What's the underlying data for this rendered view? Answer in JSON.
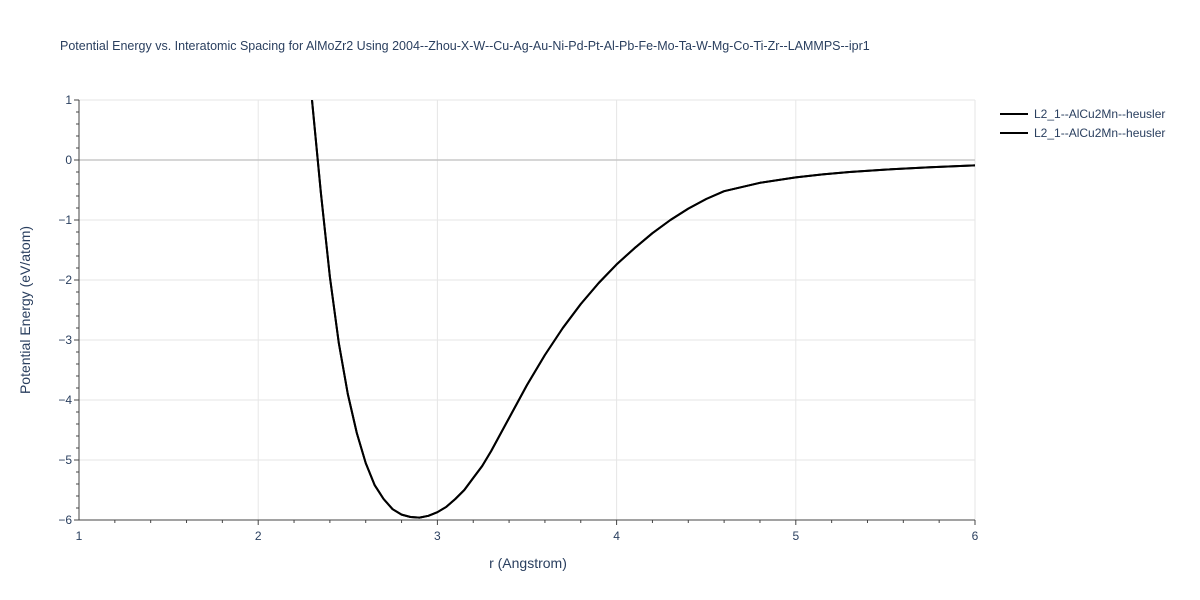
{
  "chart_data": {
    "type": "line",
    "title": "Potential Energy vs. Interatomic Spacing for AlMoZr2 Using 2004--Zhou-X-W--Cu-Ag-Au-Ni-Pd-Pt-Al-Pb-Fe-Mo-Ta-W-Mg-Co-Ti-Zr--LAMMPS--ipr1",
    "xlabel": "r (Angstrom)",
    "ylabel": "Potential Energy (eV/atom)",
    "xlim": [
      1,
      6
    ],
    "ylim": [
      -6,
      1
    ],
    "xticks": [
      "1",
      "2",
      "3",
      "4",
      "5",
      "6"
    ],
    "yticks": [
      "1",
      "0",
      "−1",
      "−2",
      "−3",
      "−4",
      "−5",
      "−6"
    ],
    "grid": true,
    "legend_position": "top-right",
    "series": [
      {
        "name": "L2_1--AlCu2Mn--heusler",
        "color": "#000000",
        "x": [
          2.3,
          2.35,
          2.4,
          2.45,
          2.5,
          2.55,
          2.6,
          2.65,
          2.7,
          2.75,
          2.8,
          2.85,
          2.9,
          2.95,
          3.0,
          3.05,
          3.1,
          3.15,
          3.2,
          3.25,
          3.3,
          3.4,
          3.5,
          3.6,
          3.7,
          3.8,
          3.9,
          4.0,
          4.1,
          4.2,
          4.3,
          4.4,
          4.5,
          4.6,
          4.8,
          5.0,
          5.15,
          5.3,
          5.5,
          5.75,
          6.0
        ],
        "y": [
          1.0,
          -0.55,
          -1.95,
          -3.05,
          -3.9,
          -4.55,
          -5.05,
          -5.42,
          -5.65,
          -5.82,
          -5.91,
          -5.95,
          -5.96,
          -5.93,
          -5.87,
          -5.78,
          -5.65,
          -5.5,
          -5.3,
          -5.1,
          -4.85,
          -4.3,
          -3.75,
          -3.25,
          -2.8,
          -2.4,
          -2.05,
          -1.74,
          -1.47,
          -1.22,
          -1.0,
          -0.81,
          -0.65,
          -0.52,
          -0.38,
          -0.29,
          -0.24,
          -0.2,
          -0.16,
          -0.12,
          -0.09
        ]
      },
      {
        "name": "L2_1--AlCu2Mn--heusler",
        "color": "#000000",
        "x": [
          2.3,
          2.35,
          2.4,
          2.45,
          2.5,
          2.55,
          2.6,
          2.65,
          2.7,
          2.75,
          2.8,
          2.85,
          2.9,
          2.95,
          3.0,
          3.05,
          3.1,
          3.15,
          3.2,
          3.25,
          3.3,
          3.4,
          3.5,
          3.6,
          3.7,
          3.8,
          3.9,
          4.0,
          4.1,
          4.2,
          4.3,
          4.4,
          4.5,
          4.6,
          4.8,
          5.0,
          5.15,
          5.3,
          5.5,
          5.75,
          6.0
        ],
        "y": [
          1.0,
          -0.55,
          -1.95,
          -3.05,
          -3.9,
          -4.55,
          -5.05,
          -5.42,
          -5.65,
          -5.82,
          -5.91,
          -5.95,
          -5.96,
          -5.93,
          -5.87,
          -5.78,
          -5.65,
          -5.5,
          -5.3,
          -5.1,
          -4.85,
          -4.3,
          -3.75,
          -3.25,
          -2.8,
          -2.4,
          -2.05,
          -1.74,
          -1.47,
          -1.22,
          -1.0,
          -0.81,
          -0.65,
          -0.52,
          -0.38,
          -0.29,
          -0.24,
          -0.2,
          -0.16,
          -0.12,
          -0.09
        ]
      }
    ]
  }
}
